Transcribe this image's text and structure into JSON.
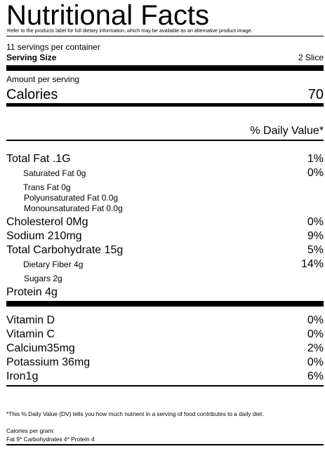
{
  "label": {
    "title": "Nutritional Facts",
    "disclaimer": "Refer to the products label for full dietary information, which may be available as an alternative product image.",
    "servings_per_container": "11 servings per container",
    "serving_size_label": "Serving Size",
    "serving_size_value": "2 Slice",
    "amount_per_serving": "Amount per serving",
    "calories_label": "Calories",
    "calories_value": "70",
    "daily_value_header": "% Daily Value*",
    "nutrients": [
      {
        "label": "Total Fat .1G",
        "value": "1%"
      },
      {
        "label": "Saturated Fat  0g",
        "value": "0%"
      },
      {
        "label": "Trans Fat 0g",
        "value": ""
      },
      {
        "label": "Polyunsaturated Fat 0.0g",
        "value": ""
      },
      {
        "label": "Monounsaturated Fat 0.0g",
        "value": ""
      },
      {
        "label": "Cholesterol 0Mg",
        "value": "0%"
      },
      {
        "label": "Sodium 210mg",
        "value": "9%"
      },
      {
        "label": "Total Carbohydrate 15g",
        "value": "5%"
      },
      {
        "label": "Dietary Fiber 4g",
        "value": "14%"
      },
      {
        "label": "Sugars 2g",
        "value": ""
      },
      {
        "label": "Protein 4g",
        "value": ""
      }
    ],
    "vitamins": [
      {
        "label": "Vitamin D",
        "value": "0%"
      },
      {
        "label": "Vitamin C",
        "value": "0%"
      },
      {
        "label": "Calcium35mg",
        "value": "2%"
      },
      {
        "label": "Potassium 36mg",
        "value": "0%"
      },
      {
        "label": "Iron1g",
        "value": "6%"
      }
    ],
    "footnote": "*This % Daily Value (DV) tells you how much nutrient in a serving of food contributes to a daily diet.",
    "calories_per_gram_label": "Calories per gram:",
    "calories_per_gram_values": "Fat 9* Carbohydrates 4* Protein 4"
  }
}
